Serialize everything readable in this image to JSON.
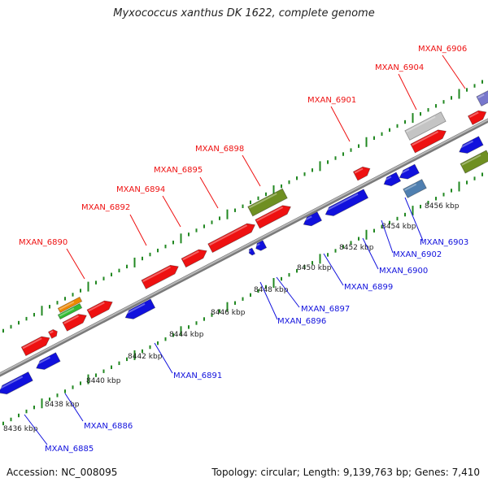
{
  "title": "Myxococcus xanthus DK 1622, complete genome",
  "accession": "Accession: NC_008095",
  "summary": "Topology: circular; Length: 9,139,763 bp; Genes: 7,410",
  "colors": {
    "forward_gene": "#ee1111",
    "reverse_gene": "#1111dd",
    "backbone": "#9a9a9a",
    "tick": "#228822",
    "olive": "#6f8f22",
    "gray": "#c4c4c4",
    "purple": "#7777cc",
    "steel": "#4f7fb0",
    "orange": "#ee8800",
    "green": "#33bb33"
  },
  "scale_labels": [
    "8436 kbp",
    "8438 kbp",
    "8440 kbp",
    "8442 kbp",
    "8444 kbp",
    "8446 kbp",
    "8448 kbp",
    "8450 kbp",
    "8452 kbp",
    "8454 kbp",
    "8456 kbp"
  ],
  "forward_labels": [
    "MXAN_6890",
    "MXAN_6892",
    "MXAN_6894",
    "MXAN_6895",
    "MXAN_6898",
    "MXAN_6901",
    "MXAN_6904",
    "MXAN_6906"
  ],
  "reverse_labels": [
    "MXAN_6885",
    "MXAN_6886",
    "MXAN_6891",
    "MXAN_6896",
    "MXAN_6897",
    "MXAN_6899",
    "MXAN_6900",
    "MXAN_6902",
    "MXAN_6903"
  ]
}
